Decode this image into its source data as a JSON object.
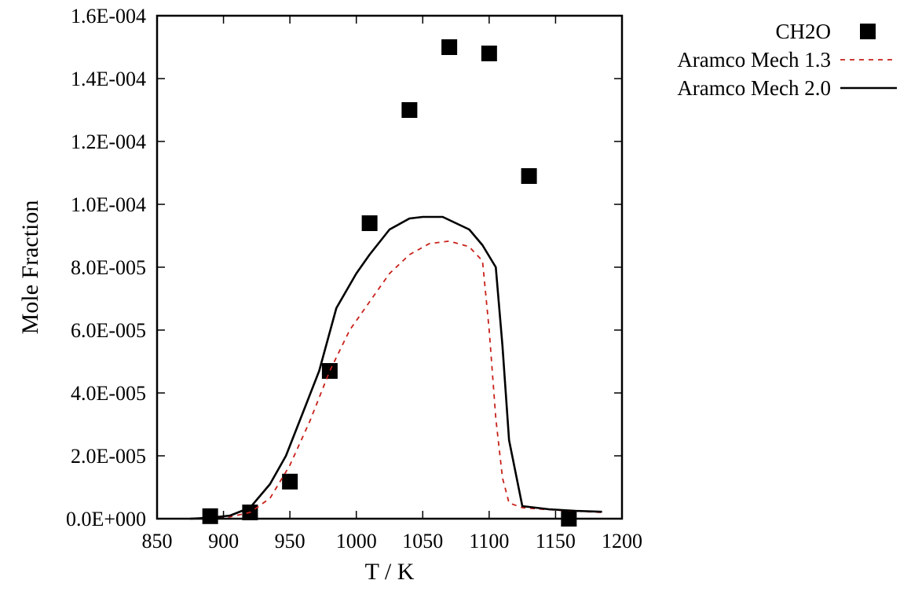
{
  "chart_data": {
    "type": "scatter",
    "xlabel": "T / K",
    "ylabel": "Mole Fraction",
    "xlim": [
      850,
      1200
    ],
    "ylim": [
      0,
      0.00016
    ],
    "x_ticks": [
      850,
      900,
      950,
      1000,
      1050,
      1100,
      1150,
      1200
    ],
    "x_tick_labels": [
      "850",
      "900",
      "950",
      "1000",
      "1050",
      "1100",
      "1150",
      "1200"
    ],
    "y_ticks": [
      0,
      2e-05,
      4e-05,
      6e-05,
      8e-05,
      0.0001,
      0.00012,
      0.00014,
      0.00016
    ],
    "y_tick_labels": [
      "0.0E+000",
      "2.0E-005",
      "4.0E-005",
      "6.0E-005",
      "8.0E-005",
      "1.0E-004",
      "1.2E-004",
      "1.4E-004",
      "1.6E-004"
    ],
    "grid": false,
    "legend_position": "outside-top-right",
    "series": [
      {
        "name": "CH2O",
        "style": "markers",
        "marker": "square",
        "color": "#000000",
        "x": [
          890,
          920,
          950,
          980,
          1010,
          1040,
          1070,
          1100,
          1130,
          1160
        ],
        "y": [
          8e-07,
          2e-06,
          1.18e-05,
          4.7e-05,
          9.4e-05,
          0.00013,
          0.00015,
          0.000148,
          0.000109,
          0.0
        ]
      },
      {
        "name": "Aramco Mech 1.3",
        "style": "dashed-line",
        "color": "#c8201a",
        "x": [
          875,
          890,
          905,
          920,
          935,
          950,
          965,
          980,
          995,
          1010,
          1025,
          1040,
          1055,
          1070,
          1085,
          1095,
          1100,
          1105,
          1110,
          1115,
          1125,
          1140,
          1160,
          1185
        ],
        "y": [
          0.0,
          2e-07,
          6e-07,
          2e-06,
          6.5e-06,
          1.7e-05,
          3.1e-05,
          4.7e-05,
          6e-05,
          6.9e-05,
          7.8e-05,
          8.4e-05,
          8.75e-05,
          8.83e-05,
          8.65e-05,
          8.2e-05,
          6e-05,
          3.2e-05,
          1.3e-05,
          5e-06,
          3.5e-06,
          3e-06,
          2.5e-06,
          2e-06
        ]
      },
      {
        "name": "Aramco Mech 2.0",
        "style": "solid-line",
        "color": "#000000",
        "x": [
          875,
          890,
          905,
          920,
          935,
          947,
          960,
          972,
          985,
          1000,
          1010,
          1025,
          1040,
          1050,
          1065,
          1085,
          1095,
          1105,
          1110,
          1115,
          1125,
          1145,
          1165,
          1185
        ],
        "y": [
          0.0,
          3e-07,
          1e-06,
          3.5e-06,
          1.1e-05,
          2e-05,
          3.4e-05,
          4.7e-05,
          6.7e-05,
          7.8e-05,
          8.4e-05,
          9.2e-05,
          9.55e-05,
          9.6e-05,
          9.6e-05,
          9.2e-05,
          8.7e-05,
          8e-05,
          5.5e-05,
          2.5e-05,
          4e-06,
          3e-06,
          2.5e-06,
          2.2e-06
        ]
      }
    ]
  }
}
